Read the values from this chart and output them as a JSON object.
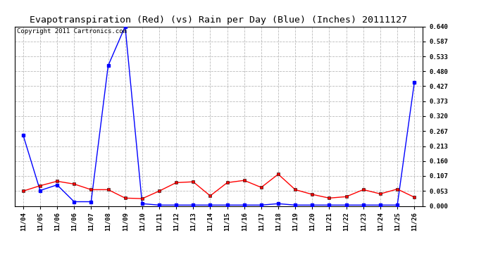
{
  "title": "Evapotranspiration (Red) (vs) Rain per Day (Blue) (Inches) 20111127",
  "copyright": "Copyright 2011 Cartronics.com",
  "x_labels": [
    "11/04",
    "11/05",
    "11/06",
    "11/06",
    "11/07",
    "11/08",
    "11/09",
    "11/10",
    "11/11",
    "11/12",
    "11/13",
    "11/14",
    "11/15",
    "11/16",
    "11/17",
    "11/18",
    "11/19",
    "11/20",
    "11/21",
    "11/22",
    "11/23",
    "11/24",
    "11/25",
    "11/26"
  ],
  "blue_rain": [
    0.253,
    0.055,
    0.075,
    0.015,
    0.015,
    0.5,
    0.64,
    0.008,
    0.003,
    0.003,
    0.003,
    0.003,
    0.003,
    0.003,
    0.003,
    0.008,
    0.003,
    0.003,
    0.003,
    0.003,
    0.003,
    0.003,
    0.003,
    0.44
  ],
  "red_et": [
    0.053,
    0.072,
    0.088,
    0.078,
    0.058,
    0.058,
    0.028,
    0.026,
    0.053,
    0.083,
    0.086,
    0.036,
    0.083,
    0.091,
    0.066,
    0.113,
    0.058,
    0.041,
    0.028,
    0.033,
    0.058,
    0.043,
    0.06,
    0.031
  ],
  "ylim": [
    0.0,
    0.64
  ],
  "yticks": [
    0.0,
    0.053,
    0.107,
    0.16,
    0.213,
    0.267,
    0.32,
    0.373,
    0.427,
    0.48,
    0.533,
    0.587,
    0.64
  ],
  "bg_color": "#ffffff",
  "plot_bg_color": "#ffffff",
  "grid_color": "#bbbbbb",
  "title_color": "#000000",
  "blue_color": "#0000ff",
  "red_color": "#ff0000",
  "marker": "s",
  "marker_size": 2.5,
  "title_fontsize": 9.5,
  "tick_fontsize": 6.5,
  "copyright_fontsize": 6.5
}
